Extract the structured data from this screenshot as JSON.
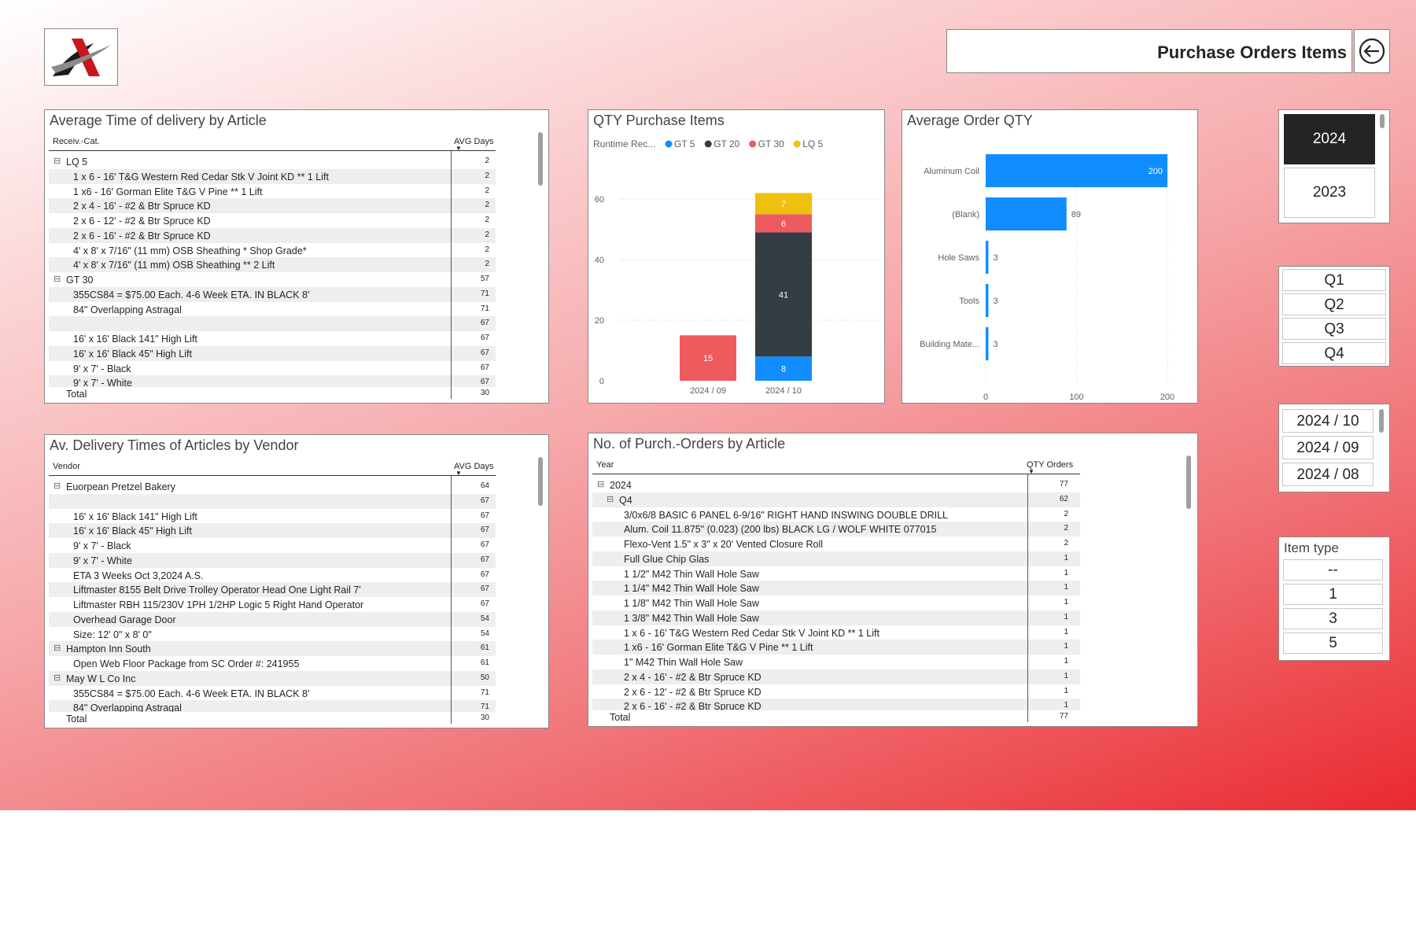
{
  "header": {
    "title": "Purchase Orders Items",
    "logo": "logo-mark-icon",
    "back_icon": "back-arrow-icon"
  },
  "colors": {
    "gt": "#118dff",
    "gt20": "#333d42",
    "gt30": "#ef5a5f",
    "lq5": "#eec10f",
    "selected": "#252423"
  },
  "avg_delivery_article": {
    "title": "Average Time of delivery by Article",
    "col1": "Receiv.-Cat.",
    "col2": "AVG Days",
    "rows": [
      {
        "l": 0,
        "label": "LQ 5",
        "value": "2"
      },
      {
        "l": 1,
        "label": "1 x 6 - 16' T&G Western Red Cedar Stk V Joint KD ** 1 Lift",
        "value": "2"
      },
      {
        "l": 1,
        "label": "1 x6 - 16' Gorman Elite T&G V Pine ** 1 Lift",
        "value": "2"
      },
      {
        "l": 1,
        "label": "2 x 4 - 16' - #2 & Btr Spruce KD",
        "value": "2"
      },
      {
        "l": 1,
        "label": "2 x 6 - 12' - #2 & Btr Spruce KD",
        "value": "2"
      },
      {
        "l": 1,
        "label": "2 x 6 - 16' - #2 & Btr Spruce KD",
        "value": "2"
      },
      {
        "l": 1,
        "label": "4' x 8' x 7/16\" (11 mm) OSB Sheathing * Shop Grade*",
        "value": "2"
      },
      {
        "l": 1,
        "label": "4' x 8' x 7/16\" (11 mm) OSB Sheathing ** 2 Lift",
        "value": "2"
      },
      {
        "l": 0,
        "label": "GT 30",
        "value": "57"
      },
      {
        "l": 1,
        "label": "355CS84 = $75.00 Each. 4-6 Week ETA. IN BLACK 8'",
        "value": "71"
      },
      {
        "l": 1,
        "label": "84\" Overlapping Astragal",
        "value": "71"
      },
      {
        "l": 1,
        "label": "",
        "value": "67"
      },
      {
        "l": 1,
        "label": "16' x 16' Black 141\" High Lift",
        "value": "67"
      },
      {
        "l": 1,
        "label": "16' x 16' Black 45\" High Lift",
        "value": "67"
      },
      {
        "l": 1,
        "label": "9' x 7' - Black",
        "value": "67"
      },
      {
        "l": 1,
        "label": "9' x 7' - White",
        "value": "67"
      }
    ],
    "total_label": "Total",
    "total_value": "30"
  },
  "qty_purchase": {
    "title": "QTY Purchase Items",
    "legend_label": "Runtime Rec...",
    "chart_data": {
      "type": "bar",
      "title": "QTY Purchase Items",
      "categories": [
        "2024 / 09",
        "2024 / 10"
      ],
      "series": [
        {
          "name": "GT 5",
          "color": "#118dff",
          "values": [
            0,
            8
          ]
        },
        {
          "name": "GT 20",
          "color": "#333d42",
          "values": [
            0,
            41
          ]
        },
        {
          "name": "GT 30",
          "color": "#ef5a5f",
          "values": [
            15,
            6
          ]
        },
        {
          "name": "LQ 5",
          "color": "#eec10f",
          "values": [
            0,
            7
          ]
        }
      ],
      "y_ticks": [
        "0",
        "20",
        "40",
        "60"
      ],
      "ylim": [
        0,
        66
      ],
      "stacked": true,
      "legend": "top-left"
    }
  },
  "avg_order_qty": {
    "title": "Average Order QTY",
    "chart_data": {
      "type": "bar",
      "orientation": "horizontal",
      "title": "Average Order QTY",
      "categories": [
        "Aluminum Coil",
        "(Blank)",
        "Hole Saws",
        "Tools",
        "Building Mate..."
      ],
      "values": [
        200,
        89,
        3,
        3,
        3
      ],
      "value_labels": [
        "200",
        "89",
        "3",
        "3",
        "3"
      ],
      "x_ticks": [
        "0",
        "100",
        "200"
      ],
      "xlim": [
        0,
        218
      ],
      "color": "#118dff"
    }
  },
  "vendor_table": {
    "title": "Av. Delivery Times of Articles by Vendor",
    "col1": "Vendor",
    "col2": "AVG Days",
    "rows": [
      {
        "l": 0,
        "label": "Euorpean Pretzel Bakery",
        "value": "64"
      },
      {
        "l": 1,
        "label": "",
        "value": "67"
      },
      {
        "l": 1,
        "label": "16' x 16' Black 141\" High Lift",
        "value": "67"
      },
      {
        "l": 1,
        "label": "16' x 16' Black 45\" High Lift",
        "value": "67"
      },
      {
        "l": 1,
        "label": "9' x 7' - Black",
        "value": "67"
      },
      {
        "l": 1,
        "label": "9' x 7' - White",
        "value": "67"
      },
      {
        "l": 1,
        "label": "ETA 3 Weeks Oct 3,2024 A.S.",
        "value": "67"
      },
      {
        "l": 1,
        "label": "Liftmaster 8155 Belt Drive Trolley Operator Head One Light Rail 7'",
        "value": "67"
      },
      {
        "l": 1,
        "label": "Liftmaster RBH 115/230V 1PH 1/2HP Logic 5 Right Hand Operator",
        "value": "67"
      },
      {
        "l": 1,
        "label": "Overhead Garage Door",
        "value": "54"
      },
      {
        "l": 1,
        "label": "Size: 12' 0\" x 8' 0\"",
        "value": "54"
      },
      {
        "l": 0,
        "label": "Hampton Inn South",
        "value": "61"
      },
      {
        "l": 1,
        "label": "Open Web Floor Package from SC Order #: 241955",
        "value": "61"
      },
      {
        "l": 0,
        "label": "May W L Co Inc",
        "value": "50"
      },
      {
        "l": 1,
        "label": "355CS84 = $75.00 Each. 4-6 Week ETA. IN BLACK 8'",
        "value": "71"
      },
      {
        "l": 1,
        "label": "84\" Overlapping Astragal",
        "value": "71"
      }
    ],
    "total_label": "Total",
    "total_value": "30"
  },
  "orders_table": {
    "title": "No. of Purch.-Orders by Article",
    "col1": "Year",
    "col2": "QTY Orders",
    "rows": [
      {
        "l": 0,
        "label": "2024",
        "value": "77"
      },
      {
        "l": 1,
        "label": "Q4",
        "value": "62"
      },
      {
        "l": 2,
        "label": "3/0x6/8 BASIC 6 PANEL 6-9/16\" RIGHT HAND INSWING DOUBLE DRILL",
        "value": "2"
      },
      {
        "l": 2,
        "label": "Alum. Coil 11.875\" (0.023) (200 lbs) BLACK LG / WOLF WHITE 077015",
        "value": "2"
      },
      {
        "l": 2,
        "label": "Flexo-Vent 1.5\" x 3\" x 20' Vented Closure Roll",
        "value": "2"
      },
      {
        "l": 2,
        "label": "Full Glue Chip Glas",
        "value": "1"
      },
      {
        "l": 2,
        "label": "1 1/2\" M42 Thin Wall Hole Saw",
        "value": "1"
      },
      {
        "l": 2,
        "label": "1 1/4\" M42 Thin Wall Hole Saw",
        "value": "1"
      },
      {
        "l": 2,
        "label": "1 1/8\" M42 Thin Wall Hole Saw",
        "value": "1"
      },
      {
        "l": 2,
        "label": "1 3/8\" M42 Thin Wall Hole Saw",
        "value": "1"
      },
      {
        "l": 2,
        "label": "1 x 6 - 16' T&G Western Red Cedar Stk V Joint KD ** 1 Lift",
        "value": "1"
      },
      {
        "l": 2,
        "label": "1 x6 - 16' Gorman Elite T&G V Pine ** 1 Lift",
        "value": "1"
      },
      {
        "l": 2,
        "label": "1\" M42 Thin Wall Hole Saw",
        "value": "1"
      },
      {
        "l": 2,
        "label": "2 x 4 - 16' - #2 & Btr Spruce KD",
        "value": "1"
      },
      {
        "l": 2,
        "label": "2 x 6 - 12' - #2 & Btr Spruce KD",
        "value": "1"
      },
      {
        "l": 2,
        "label": "2 x 6 - 16' - #2 & Btr Spruce KD",
        "value": "1"
      }
    ],
    "total_label": "Total",
    "total_value": "77"
  },
  "slicers": {
    "years": [
      {
        "label": "2024",
        "selected": true
      },
      {
        "label": "2023",
        "selected": false
      }
    ],
    "quarters": [
      "Q1",
      "Q2",
      "Q3",
      "Q4"
    ],
    "months": [
      "2024 / 10",
      "2024 / 09",
      "2024 / 08"
    ],
    "item_type": {
      "title": "Item type",
      "options": [
        "--",
        "1",
        "3",
        "5"
      ]
    }
  }
}
